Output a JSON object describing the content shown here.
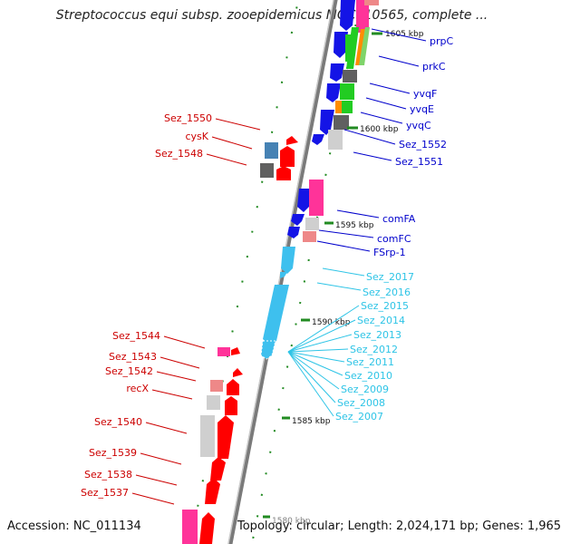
{
  "title": "Streptococcus equi subsp. zooepidemicus MGCS10565, complete ...",
  "accession": "Accession: NC_011134",
  "topology": "Topology: circular; Length: 2,024,171 bp; Genes: 1,965",
  "scale_labels": [
    "1605 kbp",
    "1600 kbp",
    "1595 kbp",
    "1590 kbp",
    "1585 kbp",
    "1580 kbp"
  ],
  "colors": {
    "backbone": "#888888",
    "right_labels": "#0000cc",
    "left_labels": "#cc0000",
    "cyan_labels": "#2ec4e6",
    "tick": "#228b22"
  },
  "right_labels": [
    "prpC",
    "prkC",
    "yvqF",
    "yvqE",
    "yvqC",
    "Sez_1552",
    "Sez_1551",
    "comFA",
    "comFC",
    "FSrp-1"
  ],
  "cyan_labels": [
    "Sez_2017",
    "Sez_2016",
    "Sez_2015",
    "Sez_2014",
    "Sez_2013",
    "Sez_2012",
    "Sez_2011",
    "Sez_2010",
    "Sez_2009",
    "Sez_2008",
    "Sez_2007"
  ],
  "left_labels": [
    "Sez_1550",
    "cysK",
    "Sez_1548",
    "Sez_1544",
    "Sez_1543",
    "Sez_1542",
    "recX",
    "Sez_1540",
    "Sez_1539",
    "Sez_1538",
    "Sez_1537"
  ]
}
